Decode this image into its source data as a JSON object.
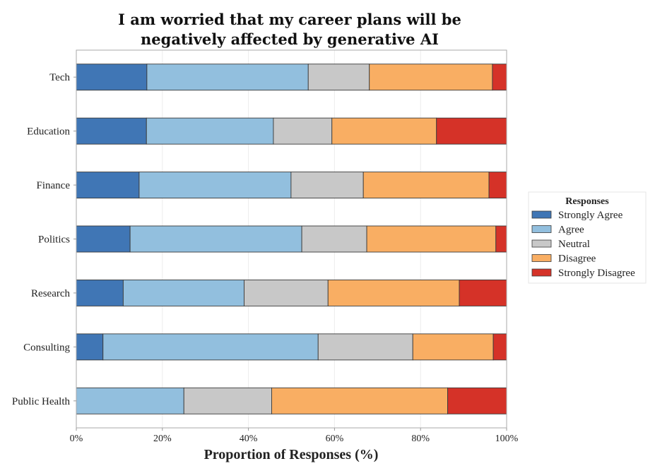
{
  "chart_data": {
    "type": "bar",
    "orientation": "horizontal",
    "stacked": true,
    "title_lines": [
      "I am worried that my career plans will be",
      "negatively affected by generative AI"
    ],
    "xlabel": "Proportion of Responses (%)",
    "ylabel": "",
    "xlim": [
      0,
      100
    ],
    "xticks": [
      0,
      20,
      40,
      60,
      80,
      100
    ],
    "xtick_labels": [
      "0%",
      "20%",
      "40%",
      "60%",
      "80%",
      "100%"
    ],
    "grid": "vertical",
    "categories": [
      "Tech",
      "Education",
      "Finance",
      "Politics",
      "Research",
      "Consulting",
      "Public Health"
    ],
    "series": [
      {
        "name": "Strongly Agree",
        "color": "#4076b5",
        "values": [
          16.4,
          16.3,
          14.6,
          12.5,
          10.9,
          6.2,
          0.0
        ]
      },
      {
        "name": "Agree",
        "color": "#92bfde",
        "values": [
          37.5,
          29.5,
          35.3,
          39.9,
          28.1,
          50.0,
          25.0
        ]
      },
      {
        "name": "Neutral",
        "color": "#c8c8c8",
        "values": [
          14.2,
          13.6,
          16.8,
          15.1,
          19.5,
          22.0,
          20.4
        ]
      },
      {
        "name": "Disagree",
        "color": "#f9ae63",
        "values": [
          28.6,
          24.3,
          29.2,
          30.0,
          30.5,
          18.7,
          40.9
        ]
      },
      {
        "name": "Strongly Disagree",
        "color": "#d53228",
        "values": [
          3.3,
          16.3,
          4.1,
          2.5,
          11.0,
          3.1,
          13.7
        ]
      }
    ],
    "legend": {
      "title": "Responses",
      "position": "right"
    }
  }
}
